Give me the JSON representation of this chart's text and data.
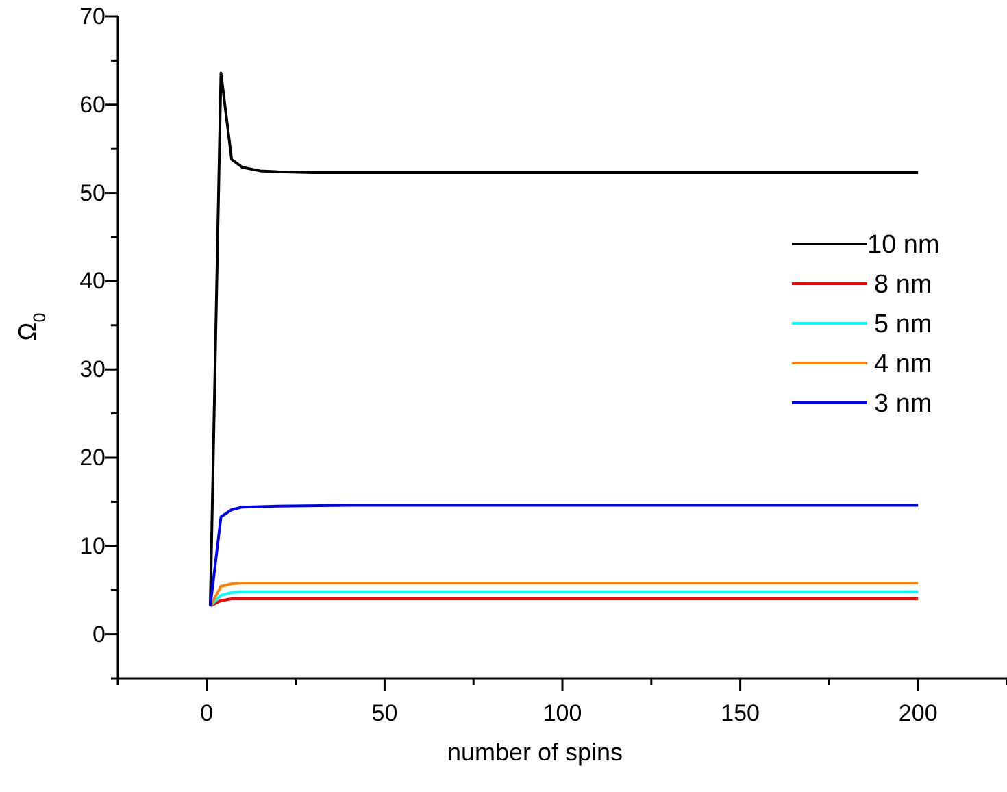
{
  "chart_data": {
    "type": "line",
    "xlabel": "number of spins",
    "ylabel": "Ω$_{0}$",
    "xlim": [
      -25,
      225
    ],
    "ylim": [
      -5,
      70
    ],
    "xticks": [
      {
        "value": -25,
        "label": null
      },
      0,
      {
        "value": 25,
        "label": null
      },
      50,
      {
        "value": 75,
        "label": null
      },
      100,
      {
        "value": 125,
        "label": null
      },
      150,
      {
        "value": 175,
        "label": null
      },
      200,
      {
        "value": 225,
        "label": null
      }
    ],
    "yticks": [
      {
        "value": -5,
        "label": null
      },
      0,
      {
        "value": 5,
        "label": null
      },
      10,
      {
        "value": 15,
        "label": null
      },
      20,
      {
        "value": 25,
        "label": null
      },
      30,
      {
        "value": 35,
        "label": null
      },
      40,
      {
        "value": 45,
        "label": null
      },
      50,
      {
        "value": 55,
        "label": null
      },
      60,
      {
        "value": 65,
        "label": null
      },
      70
    ],
    "grid": false,
    "legend": "right",
    "marker": "none",
    "line_style": "solid",
    "series": [
      {
        "name": "10 nm",
        "color": "#000000",
        "x": [
          1,
          4,
          7,
          10,
          15,
          20,
          30,
          50,
          200
        ],
        "values": [
          3.2,
          63.6,
          53.8,
          52.9,
          52.5,
          52.4,
          52.3,
          52.3,
          52.3
        ]
      },
      {
        "name": "8 nm",
        "color": "#ff0000",
        "x": [
          1,
          4,
          7,
          10,
          200
        ],
        "values": [
          3.2,
          3.8,
          4.0,
          4.0,
          4.0
        ]
      },
      {
        "name": "5 nm",
        "color": "#00ffff",
        "x": [
          1,
          4,
          7,
          10,
          200
        ],
        "values": [
          3.2,
          4.4,
          4.7,
          4.8,
          4.8
        ]
      },
      {
        "name": "4 nm",
        "color": "#ff8000",
        "x": [
          1,
          4,
          7,
          10,
          200
        ],
        "values": [
          3.2,
          5.4,
          5.7,
          5.8,
          5.8
        ]
      },
      {
        "name": "3 nm",
        "color": "#0000ff",
        "x": [
          1,
          4,
          7,
          10,
          20,
          40,
          200
        ],
        "values": [
          3.2,
          13.3,
          14.1,
          14.4,
          14.5,
          14.6,
          14.6
        ]
      }
    ]
  }
}
